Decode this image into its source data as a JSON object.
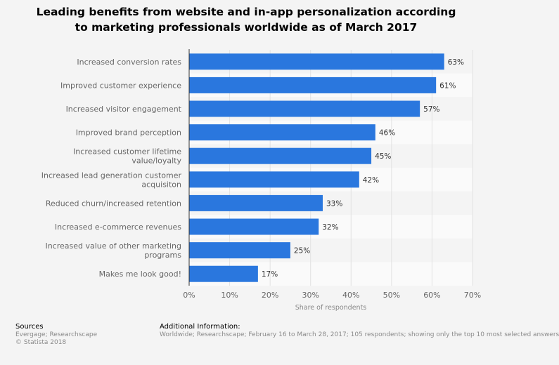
{
  "chart_data": {
    "type": "bar",
    "orientation": "horizontal",
    "title_lines": [
      "Leading benefits from website and in-app personalization according",
      "to marketing professionals worldwide as of March 2017"
    ],
    "categories": [
      [
        "Increased conversion rates"
      ],
      [
        "Improved customer experience"
      ],
      [
        "Increased visitor engagement"
      ],
      [
        "Improved brand perception"
      ],
      [
        "Increased customer lifetime",
        "value/loyalty"
      ],
      [
        "Increased lead generation customer",
        "acquisiton"
      ],
      [
        "Reduced churn/increased retention"
      ],
      [
        "Increased e-commerce revenues"
      ],
      [
        "Increased value of other marketing",
        "programs"
      ],
      [
        "Makes me look good!"
      ]
    ],
    "values": [
      63,
      61,
      57,
      46,
      45,
      42,
      33,
      32,
      25,
      17
    ],
    "value_labels": [
      "63%",
      "61%",
      "57%",
      "46%",
      "45%",
      "42%",
      "33%",
      "32%",
      "25%",
      "17%"
    ],
    "xlabel": "Share of respondents",
    "xlim": [
      0,
      70
    ],
    "xticks": [
      "0%",
      "10%",
      "20%",
      "30%",
      "40%",
      "50%",
      "60%",
      "70%"
    ],
    "grid": true,
    "bar_color": "#2a77de",
    "row_band_colors": [
      "#f4f4f4",
      "#fafafa"
    ]
  },
  "footer": {
    "sources_heading": "Sources",
    "sources_line1": "Evergage; Researchscape",
    "sources_line2": "© Statista 2018",
    "info_heading": "Additional Information:",
    "info_text": "Worldwide; Researchscape; February 16 to March 28, 2017; 105 respondents; showing only the top 10 most selected answers"
  }
}
